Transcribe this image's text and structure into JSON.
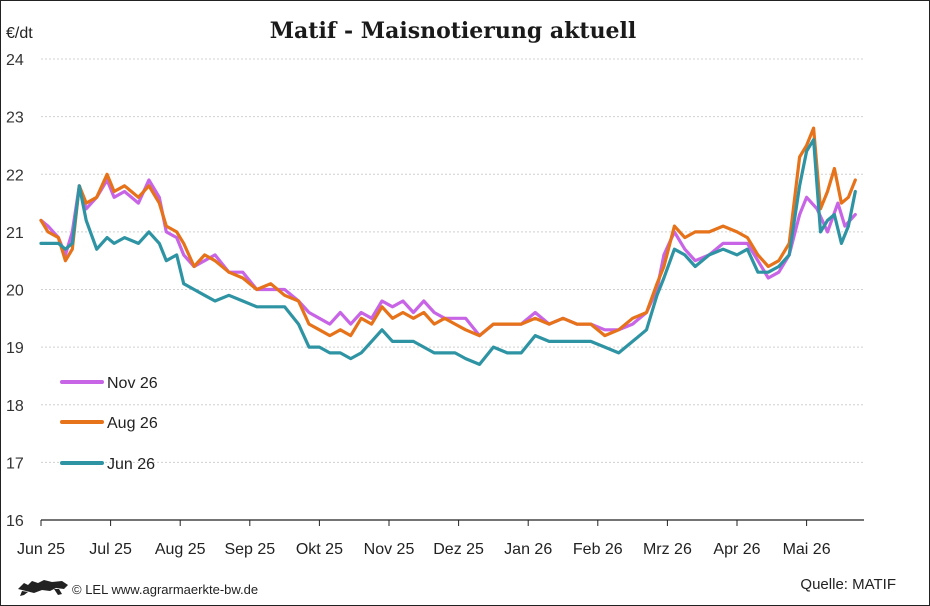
{
  "chart_data": {
    "type": "line",
    "title": "Matif - Maisnotierung aktuell",
    "ylabel": "€/dt",
    "ylim": [
      16,
      24
    ],
    "yticks": [
      16,
      17,
      18,
      19,
      20,
      21,
      22,
      23,
      24
    ],
    "x_months": [
      "Jun 25",
      "Jul 25",
      "Aug 25",
      "Sep 25",
      "Okt 25",
      "Nov 25",
      "Dez 25",
      "Jan 26",
      "Feb 26",
      "Mrz 26",
      "Apr 26",
      "Mai 26"
    ],
    "x_range_months": [
      0,
      11.7
    ],
    "grid": true,
    "legend_placement": "bottom-left",
    "series": [
      {
        "name": "Nov 26",
        "color": "#c765e6",
        "points": [
          [
            0,
            21.2
          ],
          [
            0.1,
            21.1
          ],
          [
            0.25,
            20.9
          ],
          [
            0.35,
            20.6
          ],
          [
            0.45,
            21.0
          ],
          [
            0.55,
            21.8
          ],
          [
            0.65,
            21.4
          ],
          [
            0.8,
            21.6
          ],
          [
            0.95,
            21.9
          ],
          [
            1.05,
            21.6
          ],
          [
            1.2,
            21.7
          ],
          [
            1.4,
            21.5
          ],
          [
            1.55,
            21.9
          ],
          [
            1.7,
            21.6
          ],
          [
            1.8,
            21.0
          ],
          [
            1.95,
            20.9
          ],
          [
            2.05,
            20.6
          ],
          [
            2.2,
            20.4
          ],
          [
            2.35,
            20.5
          ],
          [
            2.5,
            20.6
          ],
          [
            2.7,
            20.3
          ],
          [
            2.9,
            20.3
          ],
          [
            3.1,
            20.0
          ],
          [
            3.3,
            20.0
          ],
          [
            3.5,
            20.0
          ],
          [
            3.7,
            19.8
          ],
          [
            3.85,
            19.6
          ],
          [
            4.0,
            19.5
          ],
          [
            4.15,
            19.4
          ],
          [
            4.3,
            19.6
          ],
          [
            4.45,
            19.4
          ],
          [
            4.6,
            19.6
          ],
          [
            4.75,
            19.5
          ],
          [
            4.9,
            19.8
          ],
          [
            5.05,
            19.7
          ],
          [
            5.2,
            19.8
          ],
          [
            5.35,
            19.6
          ],
          [
            5.5,
            19.8
          ],
          [
            5.65,
            19.6
          ],
          [
            5.8,
            19.5
          ],
          [
            5.95,
            19.5
          ],
          [
            6.1,
            19.5
          ],
          [
            6.3,
            19.2
          ],
          [
            6.5,
            19.4
          ],
          [
            6.7,
            19.4
          ],
          [
            6.9,
            19.4
          ],
          [
            7.1,
            19.6
          ],
          [
            7.3,
            19.4
          ],
          [
            7.5,
            19.5
          ],
          [
            7.7,
            19.4
          ],
          [
            7.9,
            19.4
          ],
          [
            8.1,
            19.3
          ],
          [
            8.3,
            19.3
          ],
          [
            8.5,
            19.4
          ],
          [
            8.7,
            19.6
          ],
          [
            8.85,
            20.0
          ],
          [
            8.95,
            20.6
          ],
          [
            9.1,
            21.0
          ],
          [
            9.25,
            20.7
          ],
          [
            9.4,
            20.5
          ],
          [
            9.6,
            20.6
          ],
          [
            9.8,
            20.8
          ],
          [
            10.0,
            20.8
          ],
          [
            10.15,
            20.8
          ],
          [
            10.3,
            20.5
          ],
          [
            10.45,
            20.2
          ],
          [
            10.6,
            20.3
          ],
          [
            10.75,
            20.6
          ],
          [
            10.9,
            21.3
          ],
          [
            11.0,
            21.6
          ],
          [
            11.15,
            21.4
          ],
          [
            11.3,
            21.0
          ],
          [
            11.45,
            21.5
          ],
          [
            11.55,
            21.1
          ],
          [
            11.7,
            21.3
          ]
        ]
      },
      {
        "name": "Aug 26",
        "color": "#e6721a",
        "points": [
          [
            0,
            21.2
          ],
          [
            0.1,
            21.0
          ],
          [
            0.25,
            20.9
          ],
          [
            0.35,
            20.5
          ],
          [
            0.45,
            20.7
          ],
          [
            0.55,
            21.8
          ],
          [
            0.65,
            21.5
          ],
          [
            0.8,
            21.6
          ],
          [
            0.95,
            22.0
          ],
          [
            1.05,
            21.7
          ],
          [
            1.2,
            21.8
          ],
          [
            1.4,
            21.6
          ],
          [
            1.55,
            21.8
          ],
          [
            1.7,
            21.5
          ],
          [
            1.8,
            21.1
          ],
          [
            1.95,
            21.0
          ],
          [
            2.05,
            20.8
          ],
          [
            2.2,
            20.4
          ],
          [
            2.35,
            20.6
          ],
          [
            2.5,
            20.5
          ],
          [
            2.7,
            20.3
          ],
          [
            2.9,
            20.2
          ],
          [
            3.1,
            20.0
          ],
          [
            3.3,
            20.1
          ],
          [
            3.5,
            19.9
          ],
          [
            3.7,
            19.8
          ],
          [
            3.85,
            19.4
          ],
          [
            4.0,
            19.3
          ],
          [
            4.15,
            19.2
          ],
          [
            4.3,
            19.3
          ],
          [
            4.45,
            19.2
          ],
          [
            4.6,
            19.5
          ],
          [
            4.75,
            19.4
          ],
          [
            4.9,
            19.7
          ],
          [
            5.05,
            19.5
          ],
          [
            5.2,
            19.6
          ],
          [
            5.35,
            19.5
          ],
          [
            5.5,
            19.6
          ],
          [
            5.65,
            19.4
          ],
          [
            5.8,
            19.5
          ],
          [
            5.95,
            19.4
          ],
          [
            6.1,
            19.3
          ],
          [
            6.3,
            19.2
          ],
          [
            6.5,
            19.4
          ],
          [
            6.7,
            19.4
          ],
          [
            6.9,
            19.4
          ],
          [
            7.1,
            19.5
          ],
          [
            7.3,
            19.4
          ],
          [
            7.5,
            19.5
          ],
          [
            7.7,
            19.4
          ],
          [
            7.9,
            19.4
          ],
          [
            8.1,
            19.2
          ],
          [
            8.3,
            19.3
          ],
          [
            8.5,
            19.5
          ],
          [
            8.7,
            19.6
          ],
          [
            8.85,
            20.1
          ],
          [
            8.95,
            20.4
          ],
          [
            9.1,
            21.1
          ],
          [
            9.25,
            20.9
          ],
          [
            9.4,
            21.0
          ],
          [
            9.6,
            21.0
          ],
          [
            9.8,
            21.1
          ],
          [
            10.0,
            21.0
          ],
          [
            10.15,
            20.9
          ],
          [
            10.3,
            20.6
          ],
          [
            10.45,
            20.4
          ],
          [
            10.6,
            20.5
          ],
          [
            10.75,
            20.8
          ],
          [
            10.9,
            22.3
          ],
          [
            11.0,
            22.5
          ],
          [
            11.1,
            22.8
          ],
          [
            11.2,
            21.4
          ],
          [
            11.3,
            21.7
          ],
          [
            11.4,
            22.1
          ],
          [
            11.5,
            21.5
          ],
          [
            11.6,
            21.6
          ],
          [
            11.7,
            21.9
          ]
        ]
      },
      {
        "name": "Jun 26",
        "color": "#2e94a3",
        "points": [
          [
            0,
            20.8
          ],
          [
            0.1,
            20.8
          ],
          [
            0.25,
            20.8
          ],
          [
            0.35,
            20.7
          ],
          [
            0.45,
            20.8
          ],
          [
            0.55,
            21.8
          ],
          [
            0.65,
            21.2
          ],
          [
            0.8,
            20.7
          ],
          [
            0.95,
            20.9
          ],
          [
            1.05,
            20.8
          ],
          [
            1.2,
            20.9
          ],
          [
            1.4,
            20.8
          ],
          [
            1.55,
            21.0
          ],
          [
            1.7,
            20.8
          ],
          [
            1.8,
            20.5
          ],
          [
            1.95,
            20.6
          ],
          [
            2.05,
            20.1
          ],
          [
            2.2,
            20.0
          ],
          [
            2.35,
            19.9
          ],
          [
            2.5,
            19.8
          ],
          [
            2.7,
            19.9
          ],
          [
            2.9,
            19.8
          ],
          [
            3.1,
            19.7
          ],
          [
            3.3,
            19.7
          ],
          [
            3.5,
            19.7
          ],
          [
            3.7,
            19.4
          ],
          [
            3.85,
            19.0
          ],
          [
            4.0,
            19.0
          ],
          [
            4.15,
            18.9
          ],
          [
            4.3,
            18.9
          ],
          [
            4.45,
            18.8
          ],
          [
            4.6,
            18.9
          ],
          [
            4.75,
            19.1
          ],
          [
            4.9,
            19.3
          ],
          [
            5.05,
            19.1
          ],
          [
            5.2,
            19.1
          ],
          [
            5.35,
            19.1
          ],
          [
            5.5,
            19.0
          ],
          [
            5.65,
            18.9
          ],
          [
            5.8,
            18.9
          ],
          [
            5.95,
            18.9
          ],
          [
            6.1,
            18.8
          ],
          [
            6.3,
            18.7
          ],
          [
            6.5,
            19.0
          ],
          [
            6.7,
            18.9
          ],
          [
            6.9,
            18.9
          ],
          [
            7.1,
            19.2
          ],
          [
            7.3,
            19.1
          ],
          [
            7.5,
            19.1
          ],
          [
            7.7,
            19.1
          ],
          [
            7.9,
            19.1
          ],
          [
            8.1,
            19.0
          ],
          [
            8.3,
            18.9
          ],
          [
            8.5,
            19.1
          ],
          [
            8.7,
            19.3
          ],
          [
            8.85,
            19.9
          ],
          [
            8.95,
            20.2
          ],
          [
            9.1,
            20.7
          ],
          [
            9.25,
            20.6
          ],
          [
            9.4,
            20.4
          ],
          [
            9.6,
            20.6
          ],
          [
            9.8,
            20.7
          ],
          [
            10.0,
            20.6
          ],
          [
            10.15,
            20.7
          ],
          [
            10.3,
            20.3
          ],
          [
            10.45,
            20.3
          ],
          [
            10.6,
            20.4
          ],
          [
            10.75,
            20.6
          ],
          [
            10.9,
            21.8
          ],
          [
            11.0,
            22.4
          ],
          [
            11.1,
            22.6
          ],
          [
            11.2,
            21.0
          ],
          [
            11.3,
            21.2
          ],
          [
            11.4,
            21.3
          ],
          [
            11.5,
            20.8
          ],
          [
            11.6,
            21.1
          ],
          [
            11.7,
            21.7
          ]
        ]
      }
    ]
  },
  "footer": {
    "copyright": "© LEL www.agrarmaerkte-bw.de",
    "source": "Quelle: MATIF",
    "logo_icon": "lion-logo-icon"
  }
}
